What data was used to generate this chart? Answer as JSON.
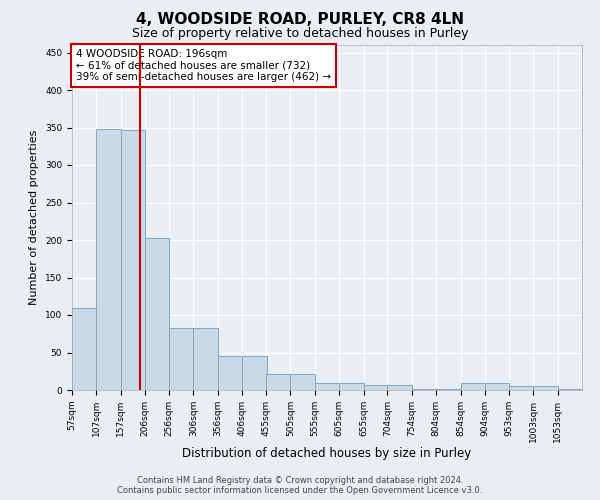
{
  "title": "4, WOODSIDE ROAD, PURLEY, CR8 4LN",
  "subtitle": "Size of property relative to detached houses in Purley",
  "xlabel": "Distribution of detached houses by size in Purley",
  "ylabel": "Number of detached properties",
  "bar_left_edges": [
    57,
    107,
    157,
    206,
    256,
    306,
    356,
    406,
    455,
    505,
    555,
    605,
    655,
    704,
    754,
    804,
    854,
    904,
    953,
    1003,
    1053
  ],
  "bar_widths": [
    50,
    50,
    50,
    50,
    50,
    50,
    50,
    50,
    49,
    50,
    50,
    50,
    49,
    50,
    50,
    50,
    50,
    49,
    50,
    50,
    50
  ],
  "bar_heights": [
    110,
    348,
    347,
    203,
    83,
    83,
    46,
    46,
    22,
    22,
    10,
    10,
    7,
    7,
    2,
    2,
    10,
    10,
    5,
    5,
    2
  ],
  "bar_color": "#c9d9e8",
  "bar_edgecolor": "#7fa8c9",
  "property_size": 196,
  "property_label": "4 WOODSIDE ROAD: 196sqm",
  "annotation_line1": "← 61% of detached houses are smaller (732)",
  "annotation_line2": "39% of semi-detached houses are larger (462) →",
  "annotation_box_color": "#ffffff",
  "annotation_box_edgecolor": "#cc0000",
  "vline_color": "#cc0000",
  "ylim": [
    0,
    460
  ],
  "yticks": [
    0,
    50,
    100,
    150,
    200,
    250,
    300,
    350,
    400,
    450
  ],
  "xlim": [
    57,
    1103
  ],
  "tick_labels": [
    "57sqm",
    "107sqm",
    "157sqm",
    "206sqm",
    "256sqm",
    "306sqm",
    "356sqm",
    "406sqm",
    "455sqm",
    "505sqm",
    "555sqm",
    "605sqm",
    "655sqm",
    "704sqm",
    "754sqm",
    "804sqm",
    "854sqm",
    "904sqm",
    "953sqm",
    "1003sqm",
    "1053sqm"
  ],
  "tick_positions": [
    57,
    107,
    157,
    206,
    256,
    306,
    356,
    406,
    455,
    505,
    555,
    605,
    655,
    704,
    754,
    804,
    854,
    904,
    953,
    1003,
    1053
  ],
  "background_color": "#eaeef2",
  "plot_bg_color": "#eaeef2",
  "footer_line1": "Contains HM Land Registry data © Crown copyright and database right 2024.",
  "footer_line2": "Contains public sector information licensed under the Open Government Licence v3.0.",
  "title_fontsize": 11,
  "subtitle_fontsize": 9,
  "axis_label_fontsize": 8,
  "tick_fontsize": 6.5,
  "annotation_fontsize": 7.5,
  "footer_fontsize": 6
}
